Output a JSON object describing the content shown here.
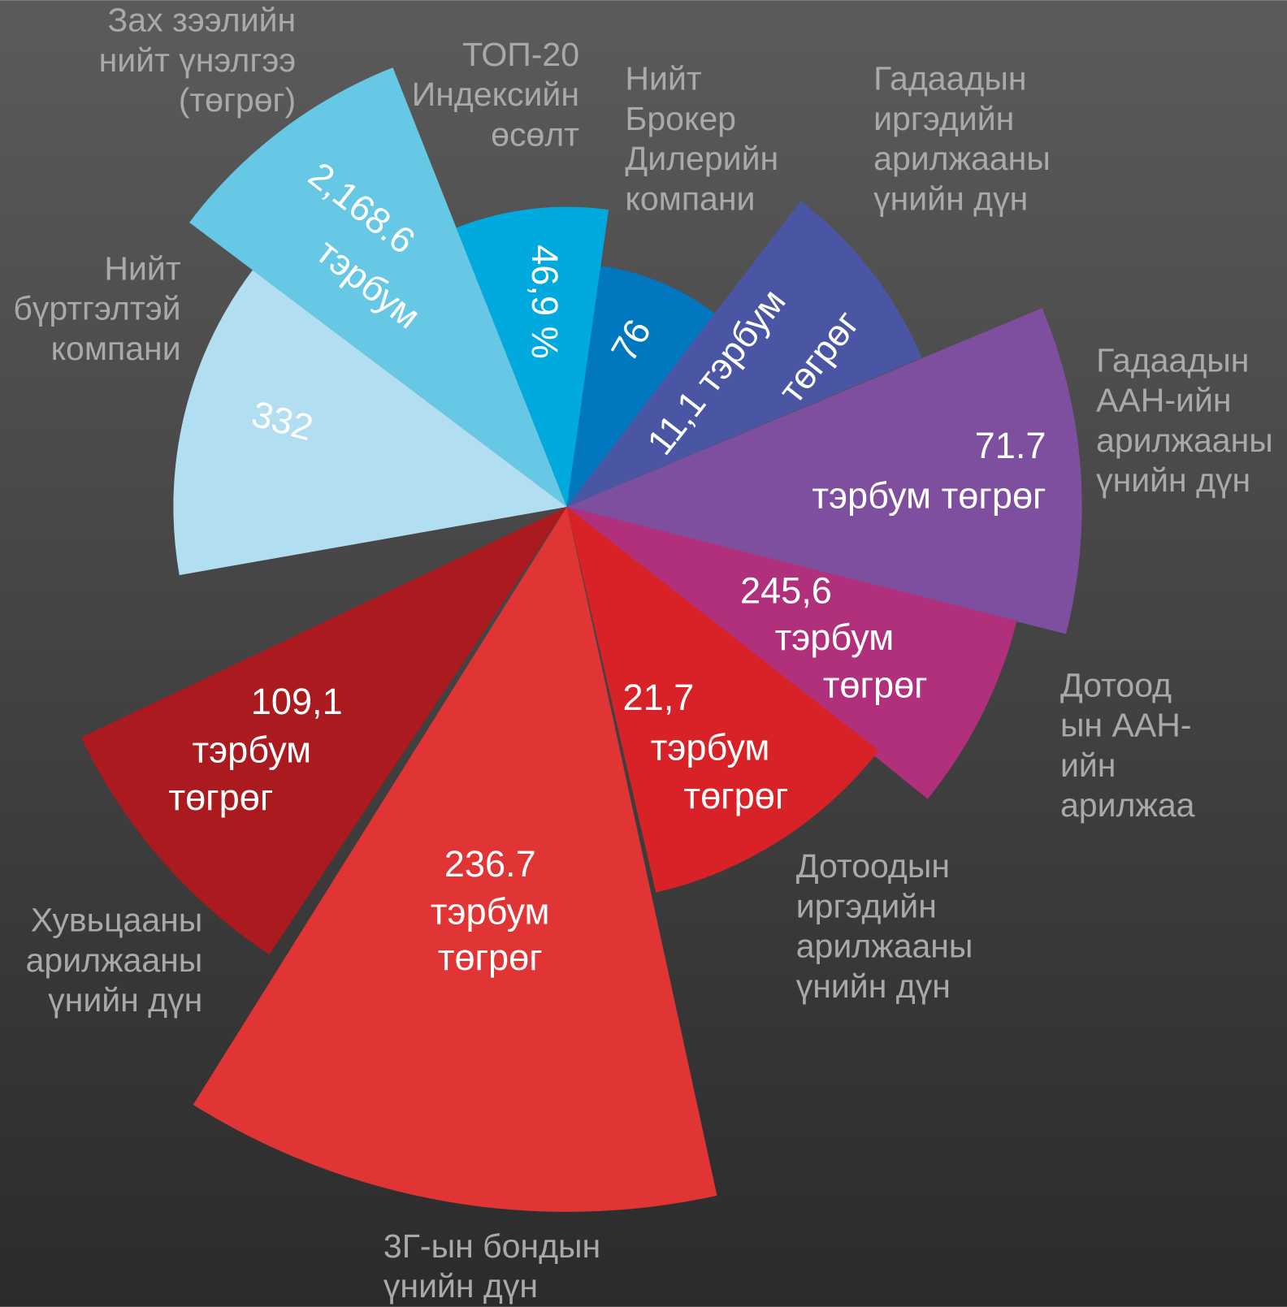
{
  "segments": [
    {
      "label": [
        "Нийт",
        "бүртгэлтэй",
        "компани"
      ],
      "value": [
        "332"
      ]
    },
    {
      "label": [
        "Зах зээлийн",
        "нийт үнэлгээ",
        "(төгрөг)"
      ],
      "value": [
        "2,168.6",
        "тэрбум"
      ]
    },
    {
      "label": [
        "ТОП-20",
        "Индексийн",
        "өсөлт"
      ],
      "value": [
        "46,9 %"
      ]
    },
    {
      "label": [
        "Нийт",
        "Брокер",
        "Дилерийн",
        "компани"
      ],
      "value": [
        "76"
      ]
    },
    {
      "label": [
        "Гадаадын",
        "иргэдийн",
        "арилжааны",
        "үнийн дүн"
      ],
      "value": [
        "11,1 тэрбум",
        "төгрөг"
      ]
    },
    {
      "label": [
        "Гадаадын",
        "ААН-ийн",
        "арилжааны",
        "үнийн дүн"
      ],
      "value": [
        "71.7",
        "тэрбум төгрөг"
      ]
    },
    {
      "label": [
        "Дотоод",
        "ын ААН-",
        "ийн",
        "арилжаа"
      ],
      "value": [
        "245,6",
        "тэрбум",
        "төгрөг"
      ]
    },
    {
      "label": [
        "Дотоодын",
        "иргэдийн",
        "арилжааны",
        "үнийн дүн"
      ],
      "value": [
        "21,7",
        "тэрбум",
        "төгрөг"
      ]
    },
    {
      "label": [
        "3Г-ын бондын",
        "үнийн дүн"
      ],
      "value": [
        "236.7",
        "тэрбум",
        "төгрөг"
      ]
    },
    {
      "label": [
        "Хувьцааны",
        "арилжааны",
        "үнийн дүн"
      ],
      "value": [
        "109,1",
        "тэрбум",
        "төгрөг"
      ]
    }
  ]
}
